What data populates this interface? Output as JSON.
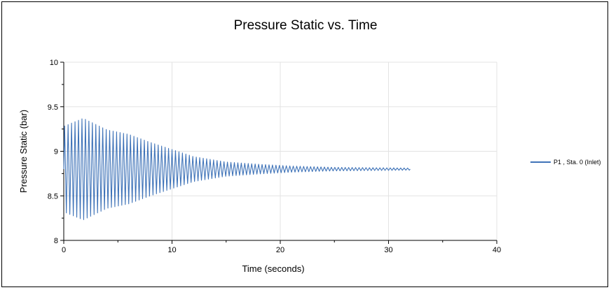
{
  "chart_data": {
    "type": "line",
    "title": "Pressure Static vs. Time",
    "xlabel": "Time (seconds)",
    "ylabel": "Pressure Static (bar)",
    "xlim": [
      0,
      40
    ],
    "ylim": [
      8,
      10
    ],
    "x_ticks": [
      0,
      10,
      20,
      30,
      40
    ],
    "y_ticks": [
      8,
      8.5,
      9,
      9.5,
      10
    ],
    "x_tick_labels": [
      "0",
      "10",
      "20",
      "30",
      "40"
    ],
    "y_tick_labels": [
      "8",
      "8.5",
      "9",
      "9.5",
      "10"
    ],
    "grid": true,
    "legend_position": "right",
    "series": [
      {
        "name": "P1 , Sta. 0 (Inlet)",
        "color": "#3f73b8",
        "style": "damped-oscillation",
        "x_range": [
          0,
          32
        ],
        "mean": 8.8,
        "cycle_period": 0.32,
        "envelope": [
          [
            0,
            0.48
          ],
          [
            1.8,
            0.57
          ],
          [
            4,
            0.44
          ],
          [
            6,
            0.39
          ],
          [
            8,
            0.3
          ],
          [
            10,
            0.22
          ],
          [
            12,
            0.14
          ],
          [
            15,
            0.08
          ],
          [
            18,
            0.055
          ],
          [
            21,
            0.035
          ],
          [
            25,
            0.02
          ],
          [
            32,
            0.012
          ]
        ]
      }
    ]
  }
}
